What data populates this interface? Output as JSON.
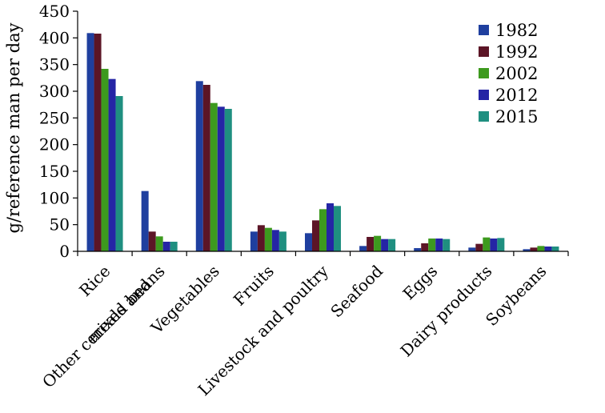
{
  "chart_data": {
    "type": "bar",
    "title": "",
    "xlabel": "",
    "ylabel": "g/reference man per day",
    "ylim": [
      0,
      450
    ],
    "yticks": [
      0,
      50,
      100,
      150,
      200,
      250,
      300,
      350,
      400,
      450
    ],
    "grid": false,
    "legend_position": "top-right",
    "categories": [
      "Rice",
      "Other cereals and mixed beans",
      "Vegetables",
      "Fruits",
      "Livestock and poultry",
      "Seafood",
      "Eggs",
      "Dairy products",
      "Soybeans"
    ],
    "category_lines": [
      [
        "Rice"
      ],
      [
        "Other cereals and",
        "mixed beans"
      ],
      [
        "Vegetables"
      ],
      [
        "Fruits"
      ],
      [
        "Livestock and poultry"
      ],
      [
        "Seafood"
      ],
      [
        "Eggs"
      ],
      [
        "Dairy products"
      ],
      [
        "Soybeans"
      ]
    ],
    "series": [
      {
        "name": "1982",
        "color": "#1f3f9f",
        "values": [
          409,
          113,
          319,
          37,
          34,
          10,
          6,
          7,
          4
        ]
      },
      {
        "name": "1992",
        "color": "#5c1526",
        "values": [
          408,
          37,
          312,
          49,
          58,
          27,
          15,
          14,
          7
        ]
      },
      {
        "name": "2002",
        "color": "#3d9a1e",
        "values": [
          342,
          28,
          278,
          44,
          79,
          29,
          24,
          26,
          10
        ]
      },
      {
        "name": "2012",
        "color": "#2525a5",
        "values": [
          323,
          18,
          271,
          40,
          90,
          23,
          24,
          24,
          9
        ]
      },
      {
        "name": "2015",
        "color": "#1f8f80",
        "values": [
          291,
          18,
          267,
          37,
          85,
          23,
          23,
          25,
          9
        ]
      }
    ]
  }
}
